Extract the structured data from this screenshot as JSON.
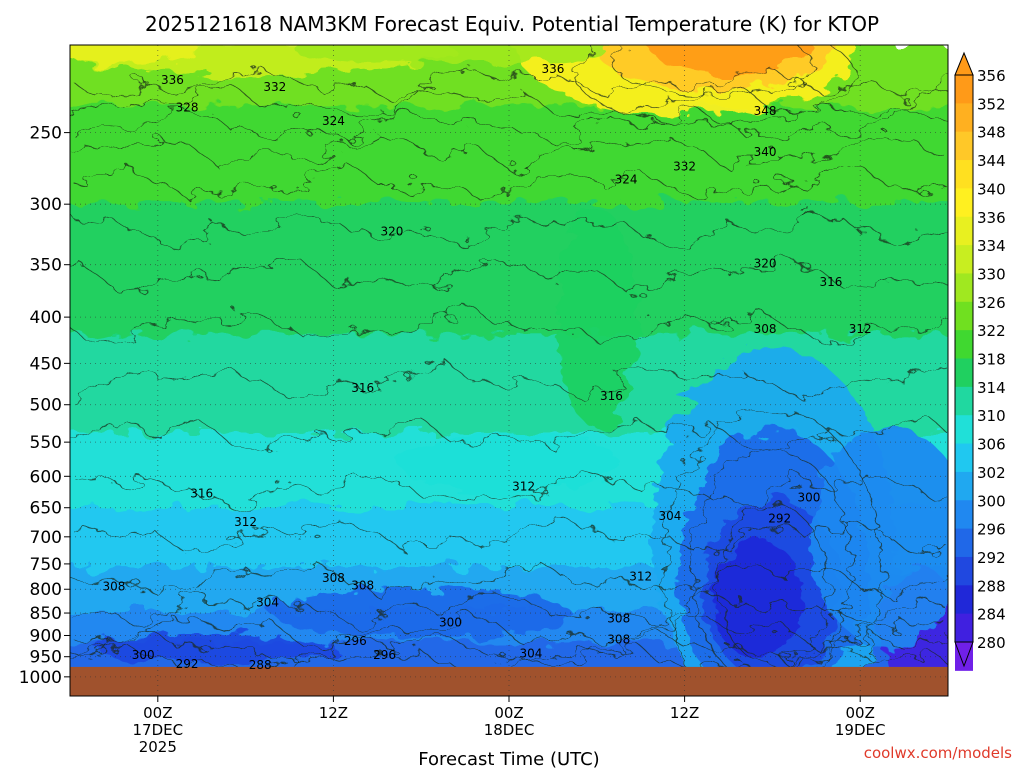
{
  "chart_data": {
    "type": "heatmap",
    "title": "2025121618 NAM3KM Forecast Equiv. Potential Temperature (K) for KTOP",
    "xlabel": "Forecast Time (UTC)",
    "ylabel": "",
    "credit": "coolwx.com/models",
    "y_scale": "log",
    "y_inverted": true,
    "ylim": [
      1050,
      200
    ],
    "y_ticks": [
      250,
      300,
      350,
      400,
      450,
      500,
      550,
      600,
      650,
      700,
      750,
      800,
      850,
      900,
      950,
      1000
    ],
    "x_ticks": [
      {
        "hour": 6,
        "lines": [
          "00Z",
          "17DEC",
          "2025"
        ]
      },
      {
        "hour": 18,
        "lines": [
          "12Z"
        ]
      },
      {
        "hour": 30,
        "lines": [
          "00Z",
          "18DEC"
        ]
      },
      {
        "hour": 42,
        "lines": [
          "12Z"
        ]
      },
      {
        "hour": 54,
        "lines": [
          "00Z",
          "19DEC"
        ]
      }
    ],
    "xlim": [
      0,
      60
    ],
    "grid": true,
    "colorbar": {
      "unit": "K",
      "labels": [
        356,
        352,
        348,
        344,
        340,
        336,
        334,
        330,
        326,
        322,
        318,
        314,
        310,
        306,
        302,
        300,
        296,
        292,
        288,
        284,
        280
      ],
      "colors": [
        "#ff9a18",
        "#ffb020",
        "#ffc828",
        "#ffe020",
        "#fff020",
        "#e8f020",
        "#c8ee20",
        "#a0e820",
        "#70e020",
        "#40d830",
        "#20d060",
        "#20d8a0",
        "#20e0d8",
        "#20c8f0",
        "#20a8f0",
        "#2088f0",
        "#2068e8",
        "#2048e0",
        "#2028d8",
        "#4020e0",
        "#7020e8"
      ]
    },
    "contour_labels": [
      {
        "t": 7.0,
        "p": 218,
        "v": 336
      },
      {
        "t": 14.0,
        "p": 222,
        "v": 332
      },
      {
        "t": 33.0,
        "p": 212,
        "v": 336
      },
      {
        "t": 8.0,
        "p": 234,
        "v": 328
      },
      {
        "t": 18.0,
        "p": 242,
        "v": 324
      },
      {
        "t": 47.5,
        "p": 236,
        "v": 348
      },
      {
        "t": 47.5,
        "p": 262,
        "v": 340
      },
      {
        "t": 42.0,
        "p": 272,
        "v": 332
      },
      {
        "t": 38.0,
        "p": 281,
        "v": 324
      },
      {
        "t": 22.0,
        "p": 321,
        "v": 320
      },
      {
        "t": 47.5,
        "p": 348,
        "v": 320
      },
      {
        "t": 52.0,
        "p": 365,
        "v": 316
      },
      {
        "t": 47.5,
        "p": 411,
        "v": 308
      },
      {
        "t": 54.0,
        "p": 411,
        "v": 312
      },
      {
        "t": 20.0,
        "p": 478,
        "v": 316
      },
      {
        "t": 37.0,
        "p": 488,
        "v": 316
      },
      {
        "t": 9.0,
        "p": 625,
        "v": 316
      },
      {
        "t": 12.0,
        "p": 672,
        "v": 312
      },
      {
        "t": 31.0,
        "p": 614,
        "v": 312
      },
      {
        "t": 50.5,
        "p": 632,
        "v": 300
      },
      {
        "t": 48.5,
        "p": 666,
        "v": 292
      },
      {
        "t": 41.0,
        "p": 662,
        "v": 304
      },
      {
        "t": 3.0,
        "p": 792,
        "v": 308
      },
      {
        "t": 18.0,
        "p": 775,
        "v": 308
      },
      {
        "t": 20.0,
        "p": 790,
        "v": 308
      },
      {
        "t": 39.0,
        "p": 772,
        "v": 312
      },
      {
        "t": 13.5,
        "p": 825,
        "v": 304
      },
      {
        "t": 26.0,
        "p": 868,
        "v": 300
      },
      {
        "t": 37.5,
        "p": 860,
        "v": 308
      },
      {
        "t": 19.5,
        "p": 910,
        "v": 296
      },
      {
        "t": 37.5,
        "p": 907,
        "v": 308
      },
      {
        "t": 21.5,
        "p": 943,
        "v": 296
      },
      {
        "t": 5.0,
        "p": 943,
        "v": 300
      },
      {
        "t": 31.5,
        "p": 940,
        "v": 304
      },
      {
        "t": 8.0,
        "p": 965,
        "v": 292
      },
      {
        "t": 13.0,
        "p": 968,
        "v": 288
      }
    ]
  }
}
